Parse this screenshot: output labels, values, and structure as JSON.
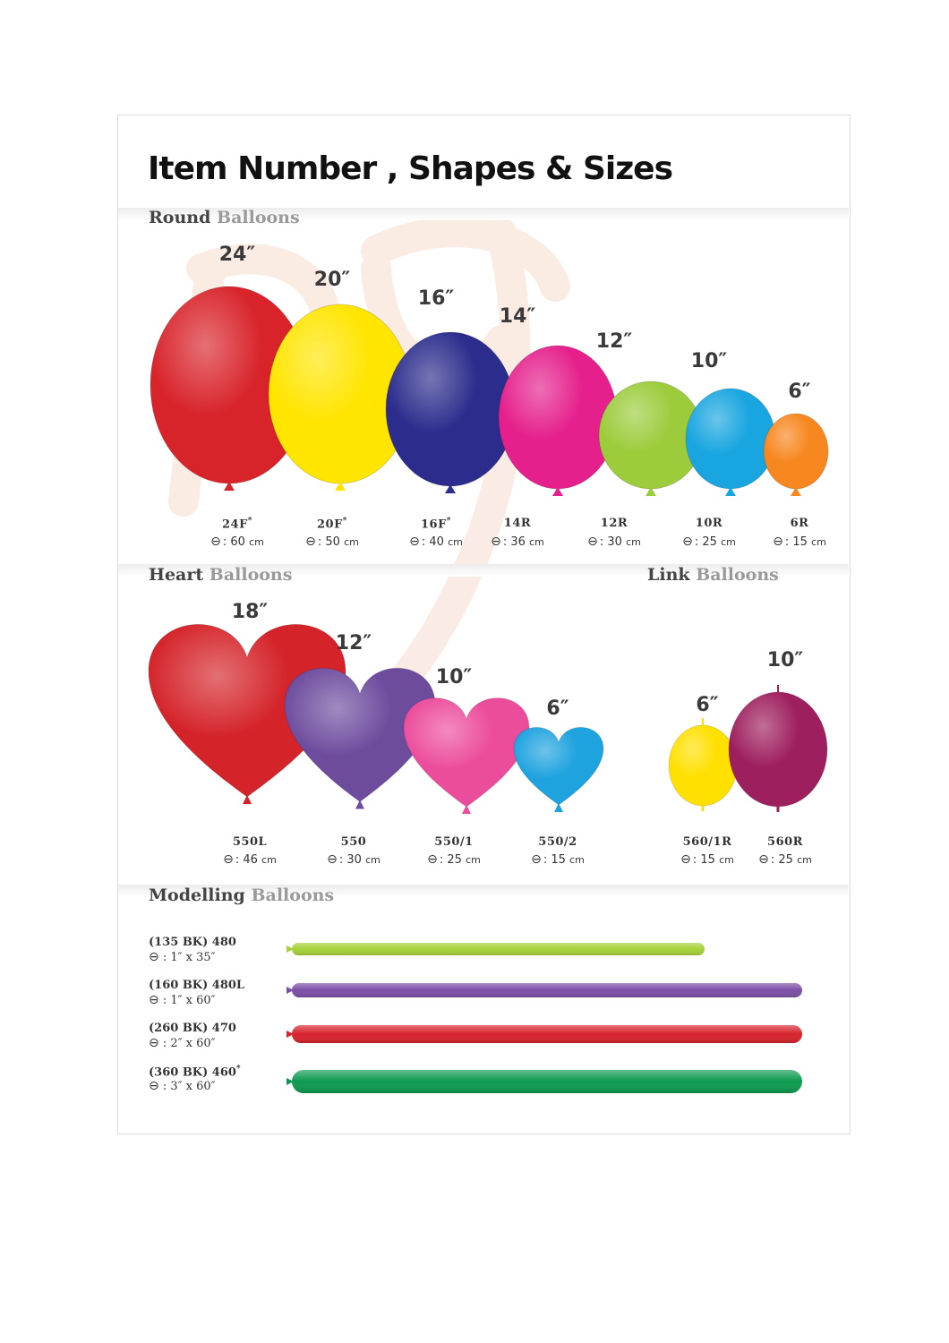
{
  "title": "Item Number , Shapes & Sizes",
  "sections": {
    "round": {
      "bold": "Round",
      "light": "Balloons"
    },
    "heart": {
      "bold": "Heart",
      "light": "Balloons"
    },
    "link": {
      "bold": "Link",
      "light": "Balloons"
    },
    "modelling": {
      "bold": "Modelling",
      "light": "Balloons"
    }
  },
  "diameter_symbol": "⊖",
  "round_balloons": [
    {
      "size": "24″",
      "code": "24F",
      "star": "*",
      "dia": ": 60",
      "unit": "cm",
      "color": "#d8232a"
    },
    {
      "size": "20″",
      "code": "20F",
      "star": "*",
      "dia": ": 50",
      "unit": "cm",
      "color": "#ffe500"
    },
    {
      "size": "16″",
      "code": "16F",
      "star": "*",
      "dia": ": 40",
      "unit": "cm",
      "color": "#2b2c8c"
    },
    {
      "size": "14″",
      "code": "14R",
      "star": "",
      "dia": ": 36",
      "unit": "cm",
      "color": "#e5208c"
    },
    {
      "size": "12″",
      "code": "12R",
      "star": "",
      "dia": ": 30",
      "unit": "cm",
      "color": "#9ccc3c"
    },
    {
      "size": "10″",
      "code": "10R",
      "star": "",
      "dia": ": 25",
      "unit": "cm",
      "color": "#19a6e0"
    },
    {
      "size": "6″",
      "code": "6R",
      "star": "",
      "dia": ": 15",
      "unit": "cm",
      "color": "#f7871f"
    }
  ],
  "heart_balloons": [
    {
      "size": "18″",
      "code": "550L",
      "dia": ": 46",
      "unit": "cm",
      "color": "#d42329"
    },
    {
      "size": "12″",
      "code": "550",
      "dia": ": 30",
      "unit": "cm",
      "color": "#6d4c9e"
    },
    {
      "size": "10″",
      "code": "550/1",
      "dia": ": 25",
      "unit": "cm",
      "color": "#ec4c9c"
    },
    {
      "size": "6″",
      "code": "550/2",
      "dia": ": 15",
      "unit": "cm",
      "color": "#1fa3df"
    }
  ],
  "link_balloons": [
    {
      "size": "6″",
      "code": "560/1R",
      "dia": ": 15",
      "unit": "cm",
      "color": "#ffe000"
    },
    {
      "size": "10″",
      "code": "560R",
      "dia": ": 25",
      "unit": "cm",
      "color": "#9e1f5e"
    }
  ],
  "modelling_balloons": [
    {
      "code": "(135 BK) 480",
      "star": "",
      "dims": ": 1″ x 35″",
      "color": "#a6d13a"
    },
    {
      "code": "(160 BK) 480L",
      "star": "",
      "dims": ": 1″ x 60″",
      "color": "#7b4fa6"
    },
    {
      "code": "(260 BK) 470",
      "star": "",
      "dims": ": 2″ x 60″",
      "color": "#d7232c"
    },
    {
      "code": "(360 BK) 460",
      "star": "*",
      "dims": ": 3″ x 60″",
      "color": "#0d9a4f"
    }
  ]
}
